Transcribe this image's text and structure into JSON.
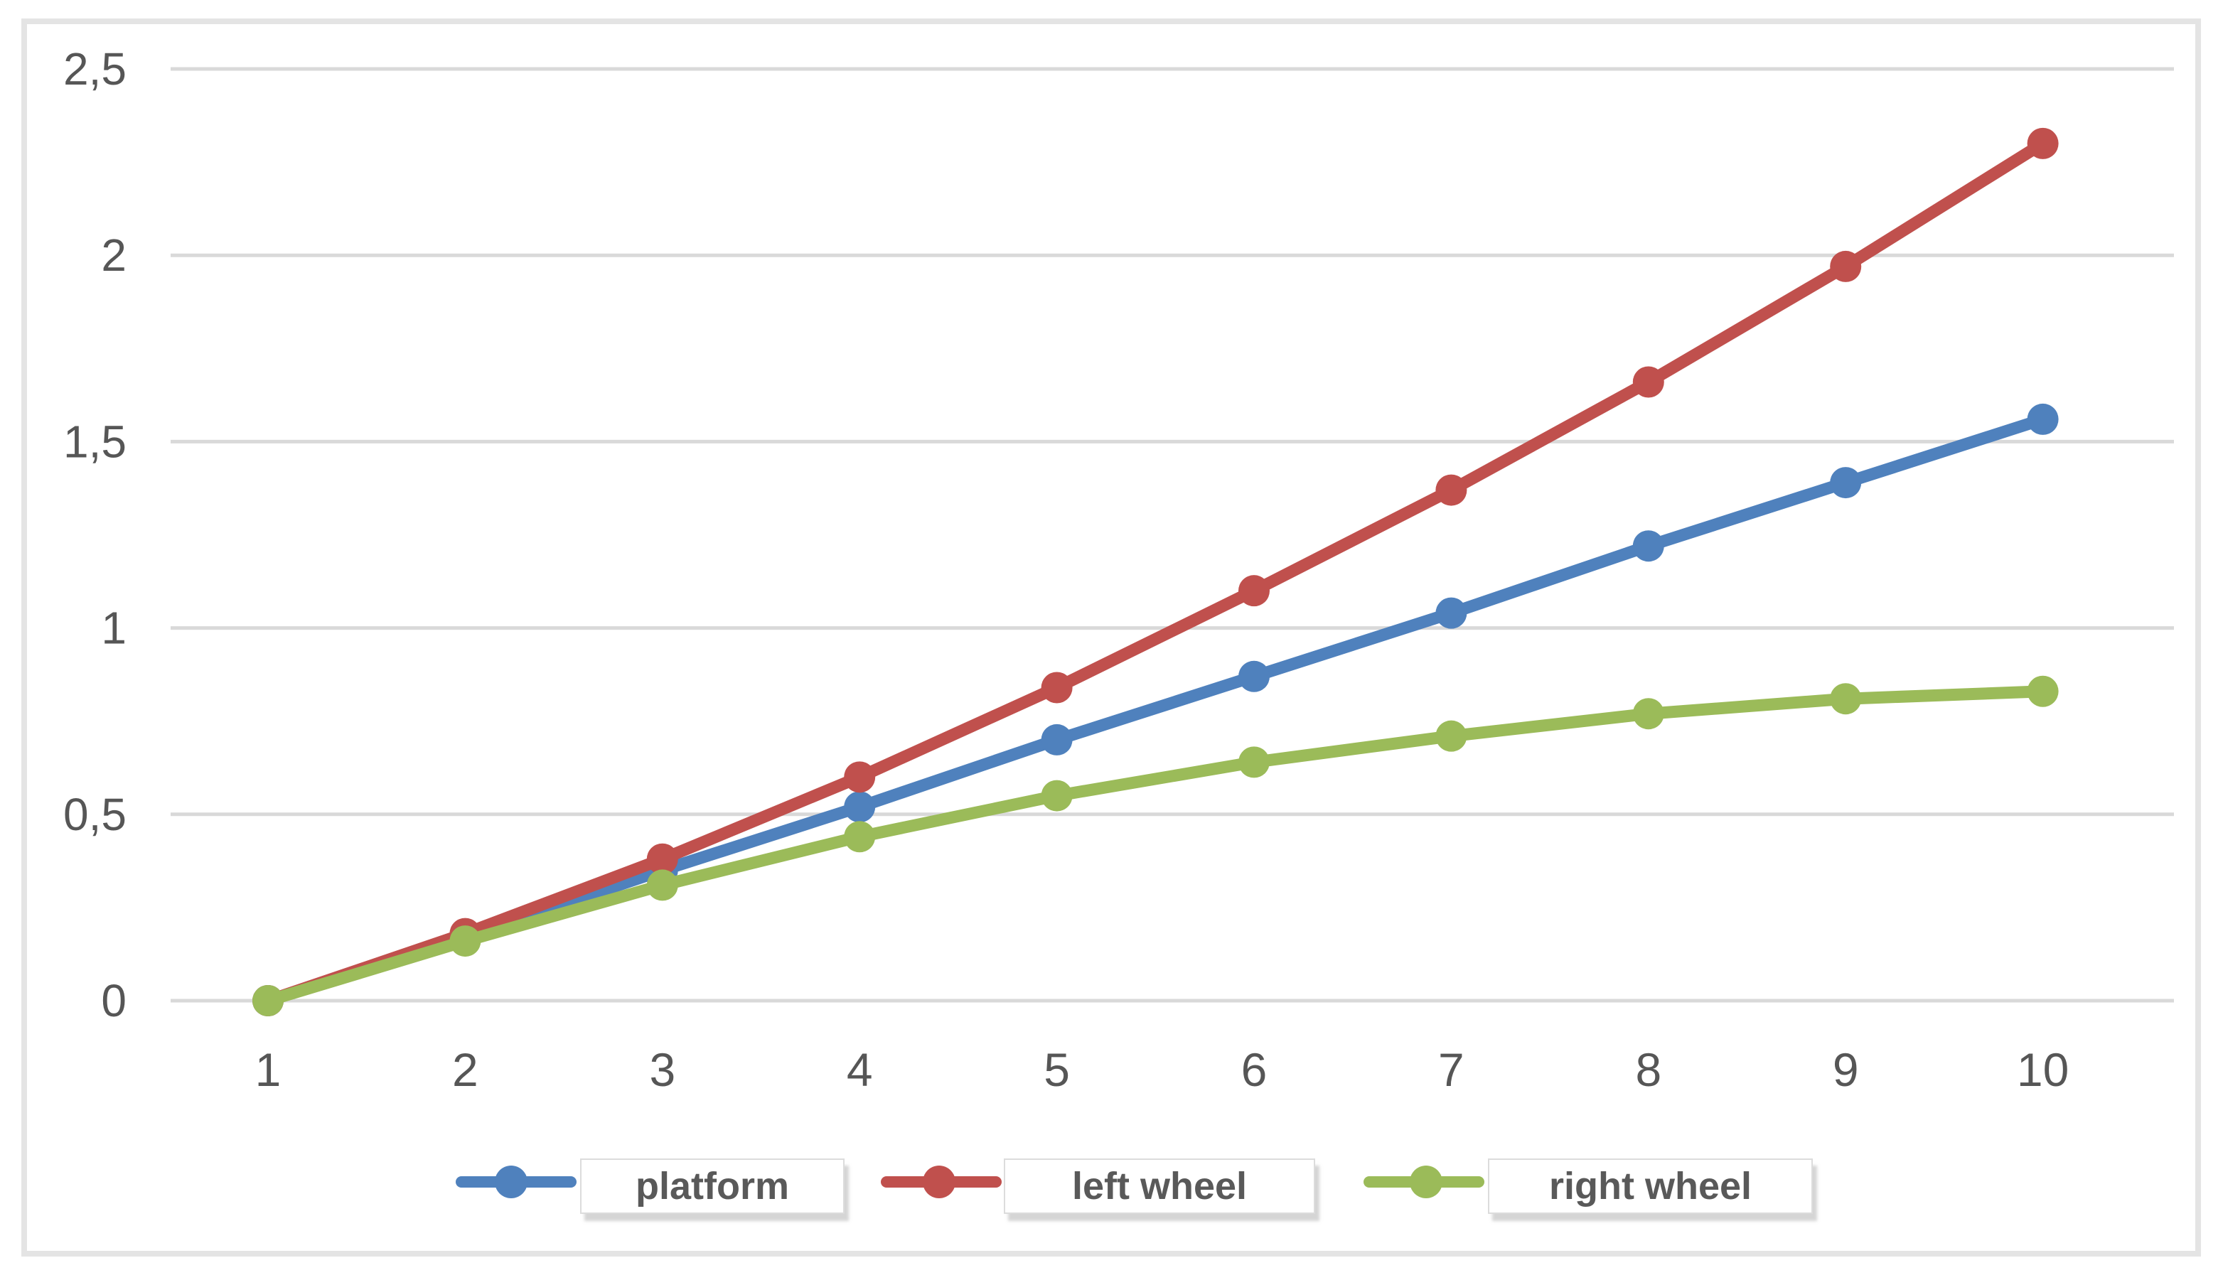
{
  "chart_data": {
    "type": "line",
    "title": "",
    "x": [
      1,
      2,
      3,
      4,
      5,
      6,
      7,
      8,
      9,
      10
    ],
    "x_tick_labels": [
      "1",
      "2",
      "3",
      "4",
      "5",
      "6",
      "7",
      "8",
      "9",
      "10"
    ],
    "y_ticks": [
      0,
      0.5,
      1,
      1.5,
      2,
      2.5
    ],
    "y_tick_labels": [
      "0",
      "0,5",
      "1",
      "1,5",
      "2",
      "2,5"
    ],
    "ylim": [
      0,
      2.5
    ],
    "xlabel": "",
    "ylabel": "",
    "decimal_separator": ",",
    "grid": true,
    "legend_position": "bottom",
    "series": [
      {
        "name": "platform",
        "color": "#4F81BD",
        "values": [
          0,
          0.17,
          0.35,
          0.52,
          0.7,
          0.87,
          1.04,
          1.22,
          1.39,
          1.56
        ]
      },
      {
        "name": "left wheel",
        "color": "#C0504D",
        "values": [
          0,
          0.18,
          0.38,
          0.6,
          0.84,
          1.1,
          1.37,
          1.66,
          1.97,
          2.3
        ]
      },
      {
        "name": "right wheel",
        "color": "#9BBB59",
        "values": [
          0,
          0.16,
          0.31,
          0.44,
          0.55,
          0.64,
          0.71,
          0.77,
          0.81,
          0.83
        ]
      }
    ]
  },
  "legend": {
    "items": [
      {
        "label": "platform",
        "color": "#4F81BD"
      },
      {
        "label": "left wheel",
        "color": "#C0504D"
      },
      {
        "label": "right wheel",
        "color": "#9BBB59"
      }
    ]
  },
  "style": {
    "grid_color": "#d9d9d9",
    "frame_color": "#e4e4e4",
    "tick_label_color": "#565656",
    "legend_text_color": "#595959",
    "background": "#ffffff"
  }
}
